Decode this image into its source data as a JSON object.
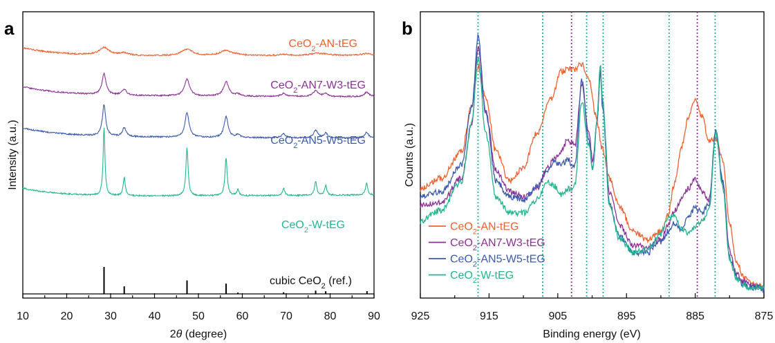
{
  "chart_data": [
    {
      "panel_label": "a",
      "type": "line",
      "xlabel": "2θ (degree)",
      "xlabel_parts": {
        "symbol": "2",
        "italic": "θ",
        "rest": " (degree)"
      },
      "ylabel": "Intensity (a.u.)",
      "xlim": [
        10,
        90
      ],
      "xticks": [
        10,
        20,
        30,
        40,
        50,
        60,
        70,
        80,
        90
      ],
      "y_tick_labels": false,
      "grid": false,
      "series": [
        {
          "name": "CeO2-AN-tEG",
          "label_main": "CeO",
          "label_sub": "2",
          "label_rest": "-AN-tEG",
          "color": "#f0602e",
          "baseline": [
            0.24,
            0.3
          ],
          "peaks": [
            [
              28.5,
              0.19,
              1.4
            ],
            [
              33.1,
              0.06,
              1.2
            ],
            [
              47.4,
              0.16,
              1.6
            ],
            [
              56.3,
              0.13,
              1.6
            ],
            [
              59.0,
              0.02,
              1.0
            ],
            [
              69.4,
              0.03,
              1.2
            ],
            [
              76.7,
              0.05,
              1.4
            ],
            [
              79.0,
              0.03,
              1.2
            ],
            [
              88.3,
              0.04,
              1.4
            ]
          ]
        },
        {
          "name": "CeO2-AN7-W3-tEG",
          "label_main": "CeO",
          "label_sub": "2",
          "label_rest": "-AN7-W3-tEG",
          "color": "#8b3196",
          "baseline": [
            0.51,
            0.45
          ],
          "peaks": [
            [
              28.5,
              0.52,
              0.55
            ],
            [
              33.1,
              0.14,
              0.6
            ],
            [
              47.4,
              0.42,
              0.7
            ],
            [
              56.3,
              0.36,
              0.7
            ],
            [
              59.0,
              0.05,
              0.6
            ],
            [
              69.4,
              0.07,
              0.7
            ],
            [
              76.7,
              0.15,
              0.7
            ],
            [
              79.0,
              0.08,
              0.6
            ],
            [
              88.3,
              0.11,
              0.7
            ]
          ]
        },
        {
          "name": "CeO2-AN5-W5-tEG",
          "label_main": "CeO",
          "label_sub": "2",
          "label_rest": "-AN5-W5-tEG",
          "color": "#3b5aad",
          "baseline": [
            0.79,
            0.72
          ],
          "peaks": [
            [
              28.5,
              0.78,
              0.45
            ],
            [
              33.1,
              0.22,
              0.5
            ],
            [
              47.4,
              0.62,
              0.55
            ],
            [
              56.3,
              0.52,
              0.55
            ],
            [
              59.0,
              0.08,
              0.5
            ],
            [
              69.4,
              0.1,
              0.55
            ],
            [
              76.7,
              0.19,
              0.55
            ],
            [
              79.0,
              0.12,
              0.5
            ],
            [
              88.3,
              0.15,
              0.55
            ]
          ]
        },
        {
          "name": "CeO2-W-tEG",
          "label_main": "CeO",
          "label_sub": "2",
          "label_rest": "-W-tEG",
          "color": "#22b590",
          "baseline": [
            1.28,
            1.37
          ],
          "peaks": [
            [
              28.5,
              1.7,
              0.25
            ],
            [
              33.1,
              0.46,
              0.28
            ],
            [
              47.4,
              1.2,
              0.3
            ],
            [
              56.3,
              0.95,
              0.3
            ],
            [
              59.0,
              0.15,
              0.3
            ],
            [
              69.4,
              0.18,
              0.3
            ],
            [
              76.7,
              0.35,
              0.3
            ],
            [
              79.0,
              0.24,
              0.3
            ],
            [
              88.3,
              0.3,
              0.3
            ]
          ]
        }
      ],
      "reference": {
        "label_main": "cubic CeO",
        "label_sub": "2",
        "label_rest": " (ref.)",
        "color": "#000000",
        "sticks": [
          [
            28.5,
            1.0
          ],
          [
            33.1,
            0.28
          ],
          [
            47.4,
            0.5
          ],
          [
            56.3,
            0.38
          ],
          [
            59.0,
            0.05
          ],
          [
            69.4,
            0.06
          ],
          [
            76.7,
            0.12
          ],
          [
            79.0,
            0.1
          ],
          [
            88.4,
            0.1
          ]
        ]
      }
    },
    {
      "panel_label": "b",
      "type": "line",
      "xlabel": "Binding energy (eV)",
      "ylabel": "Counts (a.u.)",
      "xlim": [
        925,
        875
      ],
      "xticks": [
        925,
        915,
        905,
        895,
        885,
        875
      ],
      "x_reversed": true,
      "y_tick_labels": false,
      "grid": false,
      "legend_position": "bottom-left",
      "series": [
        {
          "name": "CeO2-AN-tEG",
          "label_main": "CeO",
          "label_sub": "2",
          "label_rest": "-AN-tEG",
          "color": "#f0602e",
          "x": [
            925,
            922,
            919,
            917.5,
            916.6,
            915.5,
            914,
            912,
            910,
            908,
            906,
            904.5,
            903.5,
            902.5,
            901.5,
            900.5,
            899.5,
            898.5,
            897.5,
            896,
            894,
            892,
            890,
            889,
            888,
            887,
            886,
            885,
            884,
            883,
            882,
            881,
            880,
            879,
            878,
            877,
            876,
            875
          ],
          "y": [
            0.41,
            0.45,
            0.55,
            0.72,
            0.87,
            0.75,
            0.55,
            0.44,
            0.49,
            0.62,
            0.75,
            0.85,
            0.86,
            0.86,
            0.88,
            0.83,
            0.69,
            0.56,
            0.45,
            0.34,
            0.25,
            0.22,
            0.25,
            0.31,
            0.43,
            0.57,
            0.68,
            0.74,
            0.68,
            0.59,
            0.6,
            0.52,
            0.28,
            0.14,
            0.08,
            0.06,
            0.05,
            0.04
          ]
        },
        {
          "name": "CeO2-AN7-W3-tEG",
          "label_main": "CeO",
          "label_sub": "2",
          "label_rest": "-AN7-W3-tEG",
          "color": "#8b3196",
          "x": [
            925,
            922,
            919,
            917.5,
            916.6,
            915.5,
            914,
            912,
            910,
            908,
            906.5,
            905.5,
            904.5,
            903.5,
            903,
            902.5,
            901.5,
            900.5,
            899.9,
            899.3,
            898.8,
            898.5,
            897.5,
            896,
            894,
            892,
            890,
            889,
            888,
            887,
            886,
            885,
            884,
            883,
            882,
            881,
            880,
            879,
            878,
            877,
            876,
            875
          ],
          "y": [
            0.35,
            0.36,
            0.45,
            0.66,
            0.94,
            0.7,
            0.48,
            0.4,
            0.38,
            0.41,
            0.49,
            0.52,
            0.55,
            0.6,
            0.58,
            0.57,
            0.8,
            0.63,
            0.51,
            0.66,
            0.85,
            0.74,
            0.4,
            0.27,
            0.2,
            0.19,
            0.22,
            0.27,
            0.33,
            0.37,
            0.41,
            0.45,
            0.4,
            0.37,
            0.62,
            0.44,
            0.18,
            0.09,
            0.06,
            0.05,
            0.04,
            0.04
          ]
        },
        {
          "name": "CeO2-AN5-W5-tEG",
          "label_main": "CeO",
          "label_sub": "2",
          "label_rest": "-AN5-W5-tEG",
          "color": "#3b5aad",
          "x": [
            925,
            922,
            919,
            917.5,
            916.6,
            915.5,
            914,
            912,
            910,
            908,
            906.5,
            905.5,
            904.5,
            903.5,
            903,
            902.5,
            901.5,
            900.5,
            899.9,
            899.3,
            898.8,
            898.5,
            897.5,
            896,
            894,
            892,
            890,
            889,
            888,
            887,
            886,
            885,
            884,
            883,
            882,
            881,
            880,
            879,
            878,
            877,
            876,
            875
          ],
          "y": [
            0.38,
            0.4,
            0.5,
            0.72,
            0.98,
            0.7,
            0.44,
            0.38,
            0.37,
            0.42,
            0.48,
            0.51,
            0.5,
            0.52,
            0.5,
            0.5,
            0.82,
            0.6,
            0.48,
            0.66,
            0.86,
            0.72,
            0.36,
            0.23,
            0.17,
            0.17,
            0.21,
            0.25,
            0.28,
            0.26,
            0.3,
            0.34,
            0.32,
            0.35,
            0.63,
            0.44,
            0.15,
            0.08,
            0.05,
            0.04,
            0.04,
            0.03
          ]
        },
        {
          "name": "CeO2-W-tEG",
          "label_main": "CeO",
          "label_sub": "2",
          "label_rest": "-W-tEG",
          "color": "#22b590",
          "x": [
            925,
            922,
            919,
            917.5,
            916.6,
            915.5,
            914,
            912,
            910,
            908,
            906.5,
            905.5,
            904.5,
            903.5,
            903,
            902.5,
            901.5,
            900.5,
            899.9,
            899.3,
            898.8,
            898.5,
            897.5,
            896,
            894,
            892,
            890,
            889,
            888,
            887,
            886,
            885,
            884,
            883,
            882,
            881,
            880,
            879,
            878,
            877,
            876,
            875
          ],
          "y": [
            0.29,
            0.33,
            0.44,
            0.66,
            0.9,
            0.62,
            0.38,
            0.32,
            0.32,
            0.37,
            0.44,
            0.42,
            0.39,
            0.41,
            0.41,
            0.43,
            0.74,
            0.58,
            0.48,
            0.67,
            0.88,
            0.75,
            0.35,
            0.22,
            0.17,
            0.18,
            0.24,
            0.3,
            0.31,
            0.26,
            0.24,
            0.27,
            0.29,
            0.33,
            0.62,
            0.42,
            0.15,
            0.07,
            0.05,
            0.04,
            0.04,
            0.04
          ]
        }
      ],
      "reference_lines": [
        {
          "x": 916.6,
          "color": "#22b590"
        },
        {
          "x": 907.2,
          "color": "#22b590"
        },
        {
          "x": 903.0,
          "color": "#8b3196"
        },
        {
          "x": 900.8,
          "color": "#22b590"
        },
        {
          "x": 898.4,
          "color": "#22b590"
        },
        {
          "x": 888.8,
          "color": "#22b590"
        },
        {
          "x": 884.7,
          "color": "#8b3196"
        },
        {
          "x": 882.1,
          "color": "#22b590"
        }
      ]
    }
  ]
}
